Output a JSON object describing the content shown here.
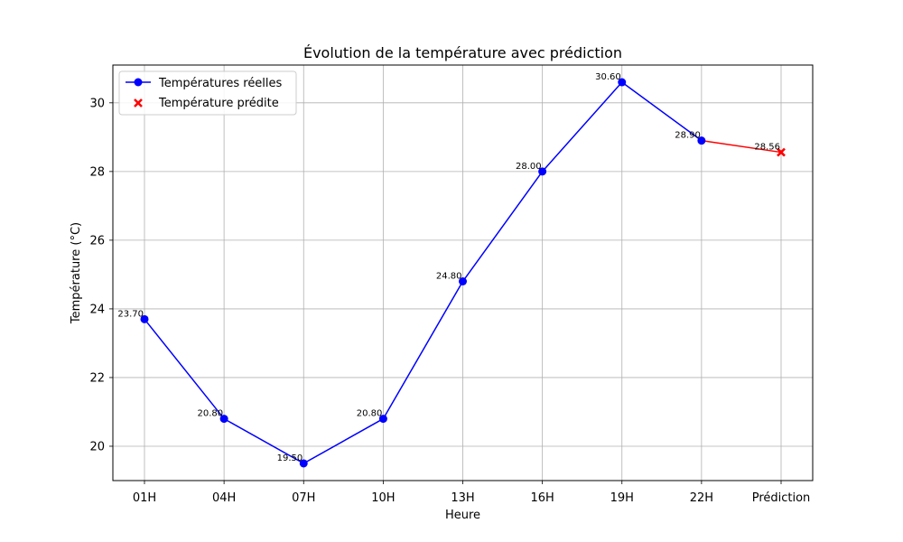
{
  "chart_data": {
    "type": "line",
    "title": "Évolution de la température avec prédiction",
    "xlabel": "Heure",
    "ylabel": "Température (°C)",
    "categories": [
      "01H",
      "04H",
      "07H",
      "10H",
      "13H",
      "16H",
      "19H",
      "22H",
      "Prédiction"
    ],
    "ylim": [
      19.0,
      31.1
    ],
    "yticks": [
      20,
      22,
      24,
      26,
      28,
      30
    ],
    "grid": true,
    "legend_position": "top-left",
    "series": [
      {
        "name": "Températures réelles",
        "color": "#0000ff",
        "marker": "circle",
        "x": [
          "01H",
          "04H",
          "07H",
          "10H",
          "13H",
          "16H",
          "19H",
          "22H"
        ],
        "values": [
          23.7,
          20.8,
          19.5,
          20.8,
          24.8,
          28.0,
          30.6,
          28.9
        ],
        "labels": [
          "23.70",
          "20.80",
          "19.50",
          "20.80",
          "24.80",
          "28.00",
          "30.60",
          "28.90"
        ]
      },
      {
        "name": "Température prédite",
        "color": "#ff0000",
        "marker": "x",
        "x": [
          "Prédiction"
        ],
        "values": [
          28.56
        ],
        "labels": [
          "28.56"
        ]
      }
    ],
    "connector": {
      "color": "#ff0000",
      "from": "22H",
      "to": "Prédiction",
      "values": [
        28.9,
        28.56
      ]
    }
  }
}
